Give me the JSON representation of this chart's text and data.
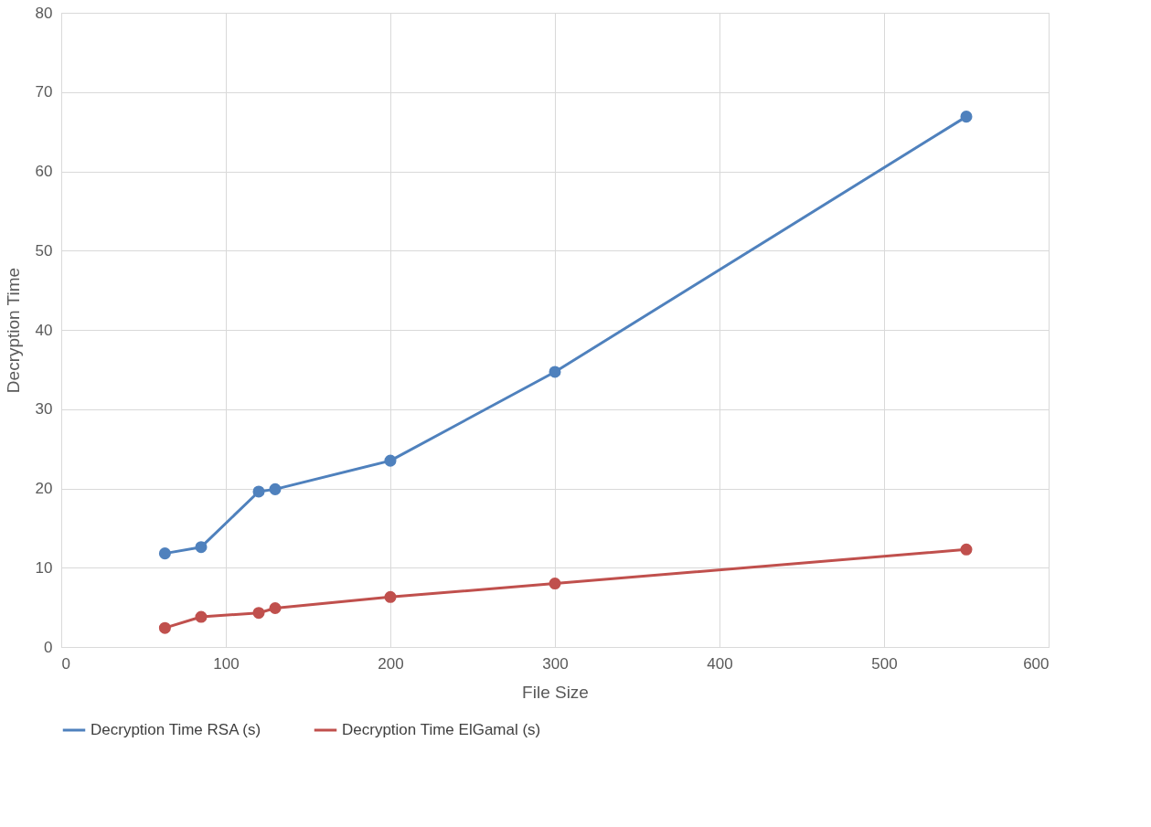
{
  "chart_data": {
    "type": "line",
    "xlabel": "File Size",
    "ylabel": "Decryption Time",
    "x": [
      63,
      85,
      120,
      130,
      200,
      300,
      550
    ],
    "series": [
      {
        "name": "Decryption Time RSA (s)",
        "color": "#4f81bd",
        "values": [
          11.8,
          12.6,
          19.6,
          19.9,
          23.5,
          34.7,
          66.9
        ]
      },
      {
        "name": "Decryption Time ElGamal (s)",
        "color": "#c0504d",
        "values": [
          2.4,
          3.8,
          4.3,
          4.9,
          6.3,
          8.0,
          12.3
        ]
      }
    ],
    "xlim": [
      0,
      600
    ],
    "xticks": [
      0,
      100,
      200,
      300,
      400,
      500,
      600
    ],
    "ylim": [
      0,
      80
    ],
    "yticks": [
      0,
      10,
      20,
      30,
      40,
      50,
      60,
      70,
      80
    ],
    "grid": true,
    "legend": "bottom",
    "marker": "circle",
    "line_style": "solid"
  }
}
